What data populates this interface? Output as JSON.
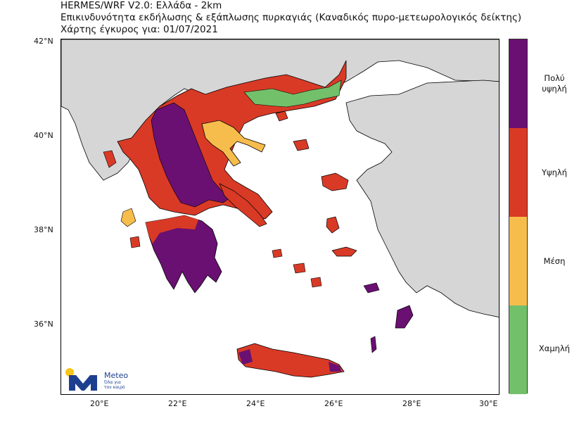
{
  "header": {
    "line1": "HERMES/WRF V2.0: Ελλάδα - 2km",
    "line2": "Επικινδυνότητα εκδήλωσης & εξάπλωσης πυρκαγιάς (Καναδικός πυρο-μετεωρολογικός δείκτης)",
    "line3": "Χάρτης έγκυρος για: 01/07/2021"
  },
  "axes": {
    "lat_ticks": [
      "42°N",
      "40°N",
      "38°N",
      "36°N"
    ],
    "lon_ticks": [
      "20°E",
      "22°E",
      "24°E",
      "26°E",
      "28°E",
      "30°E"
    ]
  },
  "legend": {
    "classes": [
      {
        "label_lines": [
          "Πολύ",
          "υψηλή"
        ],
        "color": "#6a1072"
      },
      {
        "label_lines": [
          "Υψηλή"
        ],
        "color": "#d93a26"
      },
      {
        "label_lines": [
          "Μέση"
        ],
        "color": "#f7bd4c"
      },
      {
        "label_lines": [
          "Χαμηλή"
        ],
        "color": "#73c06b"
      }
    ]
  },
  "colors": {
    "land_outside": "#d6d6d6",
    "sea": "#ffffff",
    "very_high": "#6a1072",
    "high": "#d93a26",
    "medium": "#f7bd4c",
    "low": "#73c06b",
    "logo_blue": "#1d3f8f",
    "logo_yellow": "#f5c518"
  },
  "logo": {
    "name": "Meteo",
    "tagline_1": "Όλα για",
    "tagline_2": "τον καιρό"
  }
}
